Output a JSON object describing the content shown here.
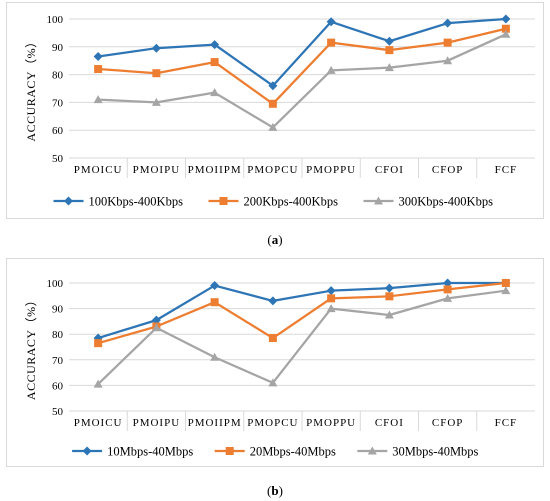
{
  "chart_data": [
    {
      "type": "line",
      "ylabel": "ACCURACY（%）",
      "ylim": [
        50,
        100
      ],
      "yticks": [
        50,
        60,
        70,
        80,
        90,
        100
      ],
      "categories": [
        "PMOICU",
        "PMOIPU",
        "PMOIIPM",
        "PMOPCU",
        "PMOPPU",
        "CFOI",
        "CFOP",
        "FCF"
      ],
      "grid": true,
      "legend": "bottom",
      "series": [
        {
          "name": "100Kbps-400Kbps",
          "color": "#2e75b6",
          "marker": "diamond",
          "values": [
            86.5,
            89.5,
            90.8,
            76.0,
            99.0,
            92.0,
            98.5,
            100.0
          ]
        },
        {
          "name": "200Kbps-400Kbps",
          "color": "#ed7d31",
          "marker": "square",
          "values": [
            82.0,
            80.5,
            84.5,
            69.5,
            91.5,
            88.8,
            91.5,
            96.5
          ]
        },
        {
          "name": "300Kbps-400Kbps",
          "color": "#a5a5a5",
          "marker": "triangle",
          "values": [
            71.0,
            70.0,
            73.5,
            61.0,
            81.5,
            82.5,
            85.0,
            94.5
          ]
        }
      ]
    },
    {
      "type": "line",
      "ylabel": "ACCURACY（%）",
      "ylim": [
        50,
        100
      ],
      "yticks": [
        50,
        60,
        70,
        80,
        90,
        100
      ],
      "categories": [
        "PMOICU",
        "PMOIPU",
        "PMOIIPM",
        "PMOPCU",
        "PMOPPU",
        "CFOI",
        "CFOP",
        "FCF"
      ],
      "grid": true,
      "legend": "bottom",
      "series": [
        {
          "name": "10Mbps-40Mbps",
          "color": "#2e75b6",
          "marker": "diamond",
          "values": [
            78.5,
            85.5,
            99.0,
            93.0,
            97.0,
            98.0,
            100.0,
            100.0
          ]
        },
        {
          "name": "20Mbps-40Mbps",
          "color": "#ed7d31",
          "marker": "square",
          "values": [
            76.5,
            83.0,
            92.5,
            78.5,
            94.0,
            94.8,
            97.5,
            100.0
          ]
        },
        {
          "name": "30Mbps-40Mbps",
          "color": "#a5a5a5",
          "marker": "triangle",
          "values": [
            60.5,
            82.5,
            71.0,
            61.0,
            90.0,
            87.5,
            94.0,
            97.0
          ]
        }
      ]
    }
  ],
  "captions": {
    "a": "a",
    "b": "b"
  }
}
